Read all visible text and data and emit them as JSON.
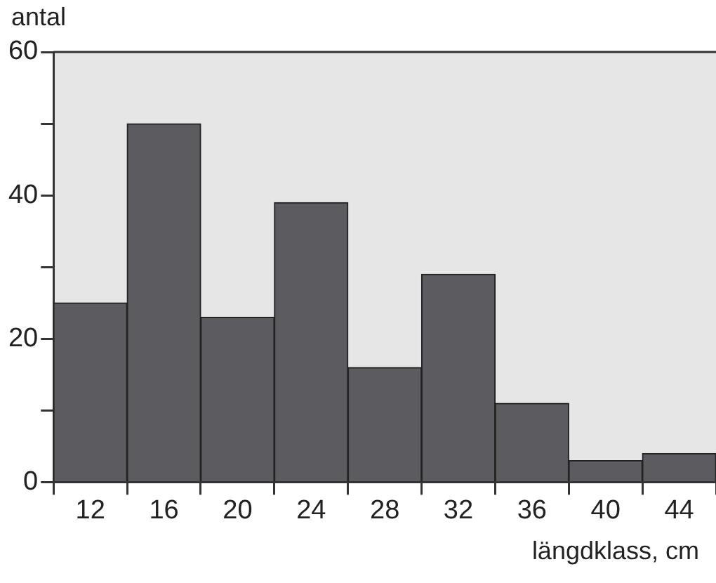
{
  "chart_data": {
    "type": "bar",
    "xlabel": "längdklass, cm",
    "ylabel": "antal",
    "categories": [
      "12",
      "16",
      "20",
      "24",
      "28",
      "32",
      "36",
      "40",
      "44"
    ],
    "values": [
      25,
      50,
      23,
      39,
      16,
      29,
      11,
      3,
      4
    ],
    "color": "#5b5b60",
    "ylim": [
      0,
      60
    ],
    "yticks": [
      0,
      {
        "value": 10,
        "label": null
      },
      20,
      {
        "value": 30,
        "label": null
      },
      40,
      {
        "value": 50,
        "label": null
      },
      60
    ],
    "grid": false
  }
}
